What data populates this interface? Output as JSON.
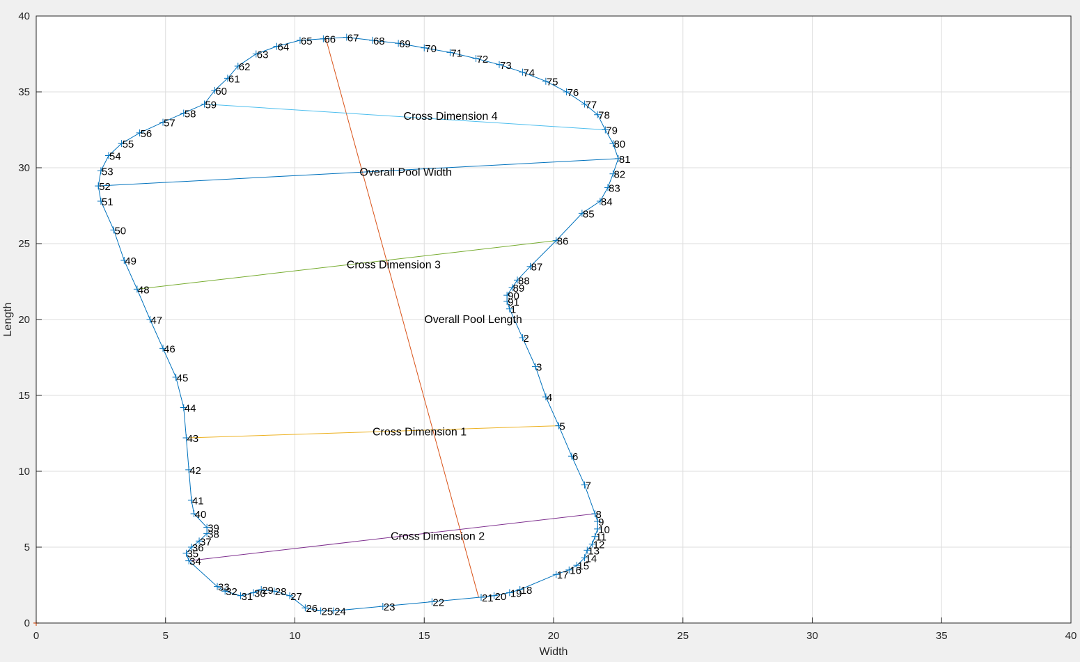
{
  "chart_data": {
    "type": "line",
    "title": "",
    "xlabel": "Width",
    "ylabel": "Length",
    "xlim": [
      0,
      40
    ],
    "ylim": [
      0,
      40
    ],
    "xticks": [
      0,
      5,
      10,
      15,
      20,
      25,
      30,
      35,
      40
    ],
    "yticks": [
      0,
      5,
      10,
      15,
      20,
      25,
      30,
      35,
      40
    ],
    "grid": true,
    "colors": {
      "outline": "#0072bd",
      "overall_length": "#d95319",
      "cross1": "#edb120",
      "cross2": "#7e2f8e",
      "cross3": "#77ac30",
      "cross4": "#4dbeee",
      "overall_width": "#0072bd",
      "origin": "#d95319"
    },
    "outline_points": [
      {
        "n": "1",
        "x": 18.3,
        "y": 20.7
      },
      {
        "n": "2",
        "x": 18.8,
        "y": 18.8
      },
      {
        "n": "3",
        "x": 19.3,
        "y": 16.9
      },
      {
        "n": "4",
        "x": 19.7,
        "y": 14.9
      },
      {
        "n": "5",
        "x": 20.2,
        "y": 13.0
      },
      {
        "n": "6",
        "x": 20.7,
        "y": 11.0
      },
      {
        "n": "7",
        "x": 21.2,
        "y": 9.1
      },
      {
        "n": "8",
        "x": 21.6,
        "y": 7.2
      },
      {
        "n": "9",
        "x": 21.7,
        "y": 6.7
      },
      {
        "n": "10",
        "x": 21.7,
        "y": 6.2
      },
      {
        "n": "11",
        "x": 21.6,
        "y": 5.7
      },
      {
        "n": "12",
        "x": 21.5,
        "y": 5.2
      },
      {
        "n": "13",
        "x": 21.3,
        "y": 4.8
      },
      {
        "n": "14",
        "x": 21.2,
        "y": 4.3
      },
      {
        "n": "15",
        "x": 20.9,
        "y": 3.8
      },
      {
        "n": "16",
        "x": 20.6,
        "y": 3.5
      },
      {
        "n": "17",
        "x": 20.1,
        "y": 3.2
      },
      {
        "n": "18",
        "x": 18.7,
        "y": 2.2
      },
      {
        "n": "19",
        "x": 18.3,
        "y": 2.0
      },
      {
        "n": "20",
        "x": 17.7,
        "y": 1.8
      },
      {
        "n": "21",
        "x": 17.2,
        "y": 1.7
      },
      {
        "n": "22",
        "x": 15.3,
        "y": 1.4
      },
      {
        "n": "23",
        "x": 13.4,
        "y": 1.1
      },
      {
        "n": "24",
        "x": 11.5,
        "y": 0.8
      },
      {
        "n": "25",
        "x": 11.0,
        "y": 0.8
      },
      {
        "n": "26",
        "x": 10.4,
        "y": 1.0
      },
      {
        "n": "27",
        "x": 9.8,
        "y": 1.8
      },
      {
        "n": "28",
        "x": 9.2,
        "y": 2.1
      },
      {
        "n": "29",
        "x": 8.7,
        "y": 2.2
      },
      {
        "n": "30",
        "x": 8.4,
        "y": 2.0
      },
      {
        "n": "31",
        "x": 7.9,
        "y": 1.8
      },
      {
        "n": "32",
        "x": 7.3,
        "y": 2.1
      },
      {
        "n": "33",
        "x": 7.0,
        "y": 2.4
      },
      {
        "n": "34",
        "x": 5.9,
        "y": 4.1
      },
      {
        "n": "35",
        "x": 5.8,
        "y": 4.6
      },
      {
        "n": "36",
        "x": 6.0,
        "y": 5.0
      },
      {
        "n": "37",
        "x": 6.3,
        "y": 5.4
      },
      {
        "n": "38",
        "x": 6.6,
        "y": 5.9
      },
      {
        "n": "39",
        "x": 6.6,
        "y": 6.3
      },
      {
        "n": "40",
        "x": 6.1,
        "y": 7.2
      },
      {
        "n": "41",
        "x": 6.0,
        "y": 8.1
      },
      {
        "n": "42",
        "x": 5.9,
        "y": 10.1
      },
      {
        "n": "43",
        "x": 5.8,
        "y": 12.2
      },
      {
        "n": "44",
        "x": 5.7,
        "y": 14.2
      },
      {
        "n": "45",
        "x": 5.4,
        "y": 16.2
      },
      {
        "n": "46",
        "x": 4.9,
        "y": 18.1
      },
      {
        "n": "47",
        "x": 4.4,
        "y": 20.0
      },
      {
        "n": "48",
        "x": 3.9,
        "y": 22.0
      },
      {
        "n": "49",
        "x": 3.4,
        "y": 23.9
      },
      {
        "n": "50",
        "x": 3.0,
        "y": 25.9
      },
      {
        "n": "51",
        "x": 2.5,
        "y": 27.8
      },
      {
        "n": "52",
        "x": 2.4,
        "y": 28.8
      },
      {
        "n": "53",
        "x": 2.5,
        "y": 29.8
      },
      {
        "n": "54",
        "x": 2.8,
        "y": 30.8
      },
      {
        "n": "55",
        "x": 3.3,
        "y": 31.6
      },
      {
        "n": "56",
        "x": 4.0,
        "y": 32.3
      },
      {
        "n": "57",
        "x": 4.9,
        "y": 33.0
      },
      {
        "n": "58",
        "x": 5.7,
        "y": 33.6
      },
      {
        "n": "59",
        "x": 6.5,
        "y": 34.2
      },
      {
        "n": "60",
        "x": 6.9,
        "y": 35.1
      },
      {
        "n": "61",
        "x": 7.4,
        "y": 35.9
      },
      {
        "n": "62",
        "x": 7.8,
        "y": 36.7
      },
      {
        "n": "63",
        "x": 8.5,
        "y": 37.5
      },
      {
        "n": "64",
        "x": 9.3,
        "y": 38.0
      },
      {
        "n": "65",
        "x": 10.2,
        "y": 38.4
      },
      {
        "n": "66",
        "x": 11.1,
        "y": 38.5
      },
      {
        "n": "67",
        "x": 12.0,
        "y": 38.6
      },
      {
        "n": "68",
        "x": 13.0,
        "y": 38.4
      },
      {
        "n": "69",
        "x": 14.0,
        "y": 38.2
      },
      {
        "n": "70",
        "x": 15.0,
        "y": 37.9
      },
      {
        "n": "71",
        "x": 16.0,
        "y": 37.6
      },
      {
        "n": "72",
        "x": 17.0,
        "y": 37.2
      },
      {
        "n": "73",
        "x": 17.9,
        "y": 36.8
      },
      {
        "n": "74",
        "x": 18.8,
        "y": 36.3
      },
      {
        "n": "75",
        "x": 19.7,
        "y": 35.7
      },
      {
        "n": "76",
        "x": 20.5,
        "y": 35.0
      },
      {
        "n": "77",
        "x": 21.2,
        "y": 34.2
      },
      {
        "n": "78",
        "x": 21.7,
        "y": 33.5
      },
      {
        "n": "79",
        "x": 22.0,
        "y": 32.5
      },
      {
        "n": "80",
        "x": 22.3,
        "y": 31.6
      },
      {
        "n": "81",
        "x": 22.5,
        "y": 30.6
      },
      {
        "n": "82",
        "x": 22.3,
        "y": 29.6
      },
      {
        "n": "83",
        "x": 22.1,
        "y": 28.7
      },
      {
        "n": "84",
        "x": 21.8,
        "y": 27.8
      },
      {
        "n": "85",
        "x": 21.1,
        "y": 27.0
      },
      {
        "n": "86",
        "x": 20.1,
        "y": 25.2
      },
      {
        "n": "87",
        "x": 19.1,
        "y": 23.5
      },
      {
        "n": "88",
        "x": 18.6,
        "y": 22.6
      },
      {
        "n": "89",
        "x": 18.4,
        "y": 22.1
      },
      {
        "n": "90",
        "x": 18.2,
        "y": 21.6
      },
      {
        "n": "91",
        "x": 18.2,
        "y": 21.2
      }
    ],
    "dimension_lines": [
      {
        "key": "overall_length",
        "label": "Overall Pool Length",
        "x": [
          11.2,
          17.1
        ],
        "y": [
          38.5,
          1.7
        ],
        "label_at": [
          15.0,
          20.0
        ]
      },
      {
        "key": "overall_width",
        "label": "Overall Pool Width",
        "x": [
          2.4,
          22.5
        ],
        "y": [
          28.8,
          30.6
        ],
        "label_at": [
          12.5,
          29.7
        ]
      },
      {
        "key": "cross1",
        "label": "Cross Dimension 1",
        "x": [
          5.9,
          20.2
        ],
        "y": [
          12.2,
          13.0
        ],
        "label_at": [
          13.0,
          12.6
        ]
      },
      {
        "key": "cross2",
        "label": "Cross Dimension 2",
        "x": [
          5.9,
          21.6
        ],
        "y": [
          4.1,
          7.2
        ],
        "label_at": [
          13.7,
          5.7
        ]
      },
      {
        "key": "cross3",
        "label": "Cross Dimension 3",
        "x": [
          3.9,
          20.1
        ],
        "y": [
          22.0,
          25.2
        ],
        "label_at": [
          12.0,
          23.6
        ]
      },
      {
        "key": "cross4",
        "label": "Cross Dimension 4",
        "x": [
          6.5,
          22.0
        ],
        "y": [
          34.2,
          32.5
        ],
        "label_at": [
          14.2,
          33.4
        ]
      }
    ]
  }
}
